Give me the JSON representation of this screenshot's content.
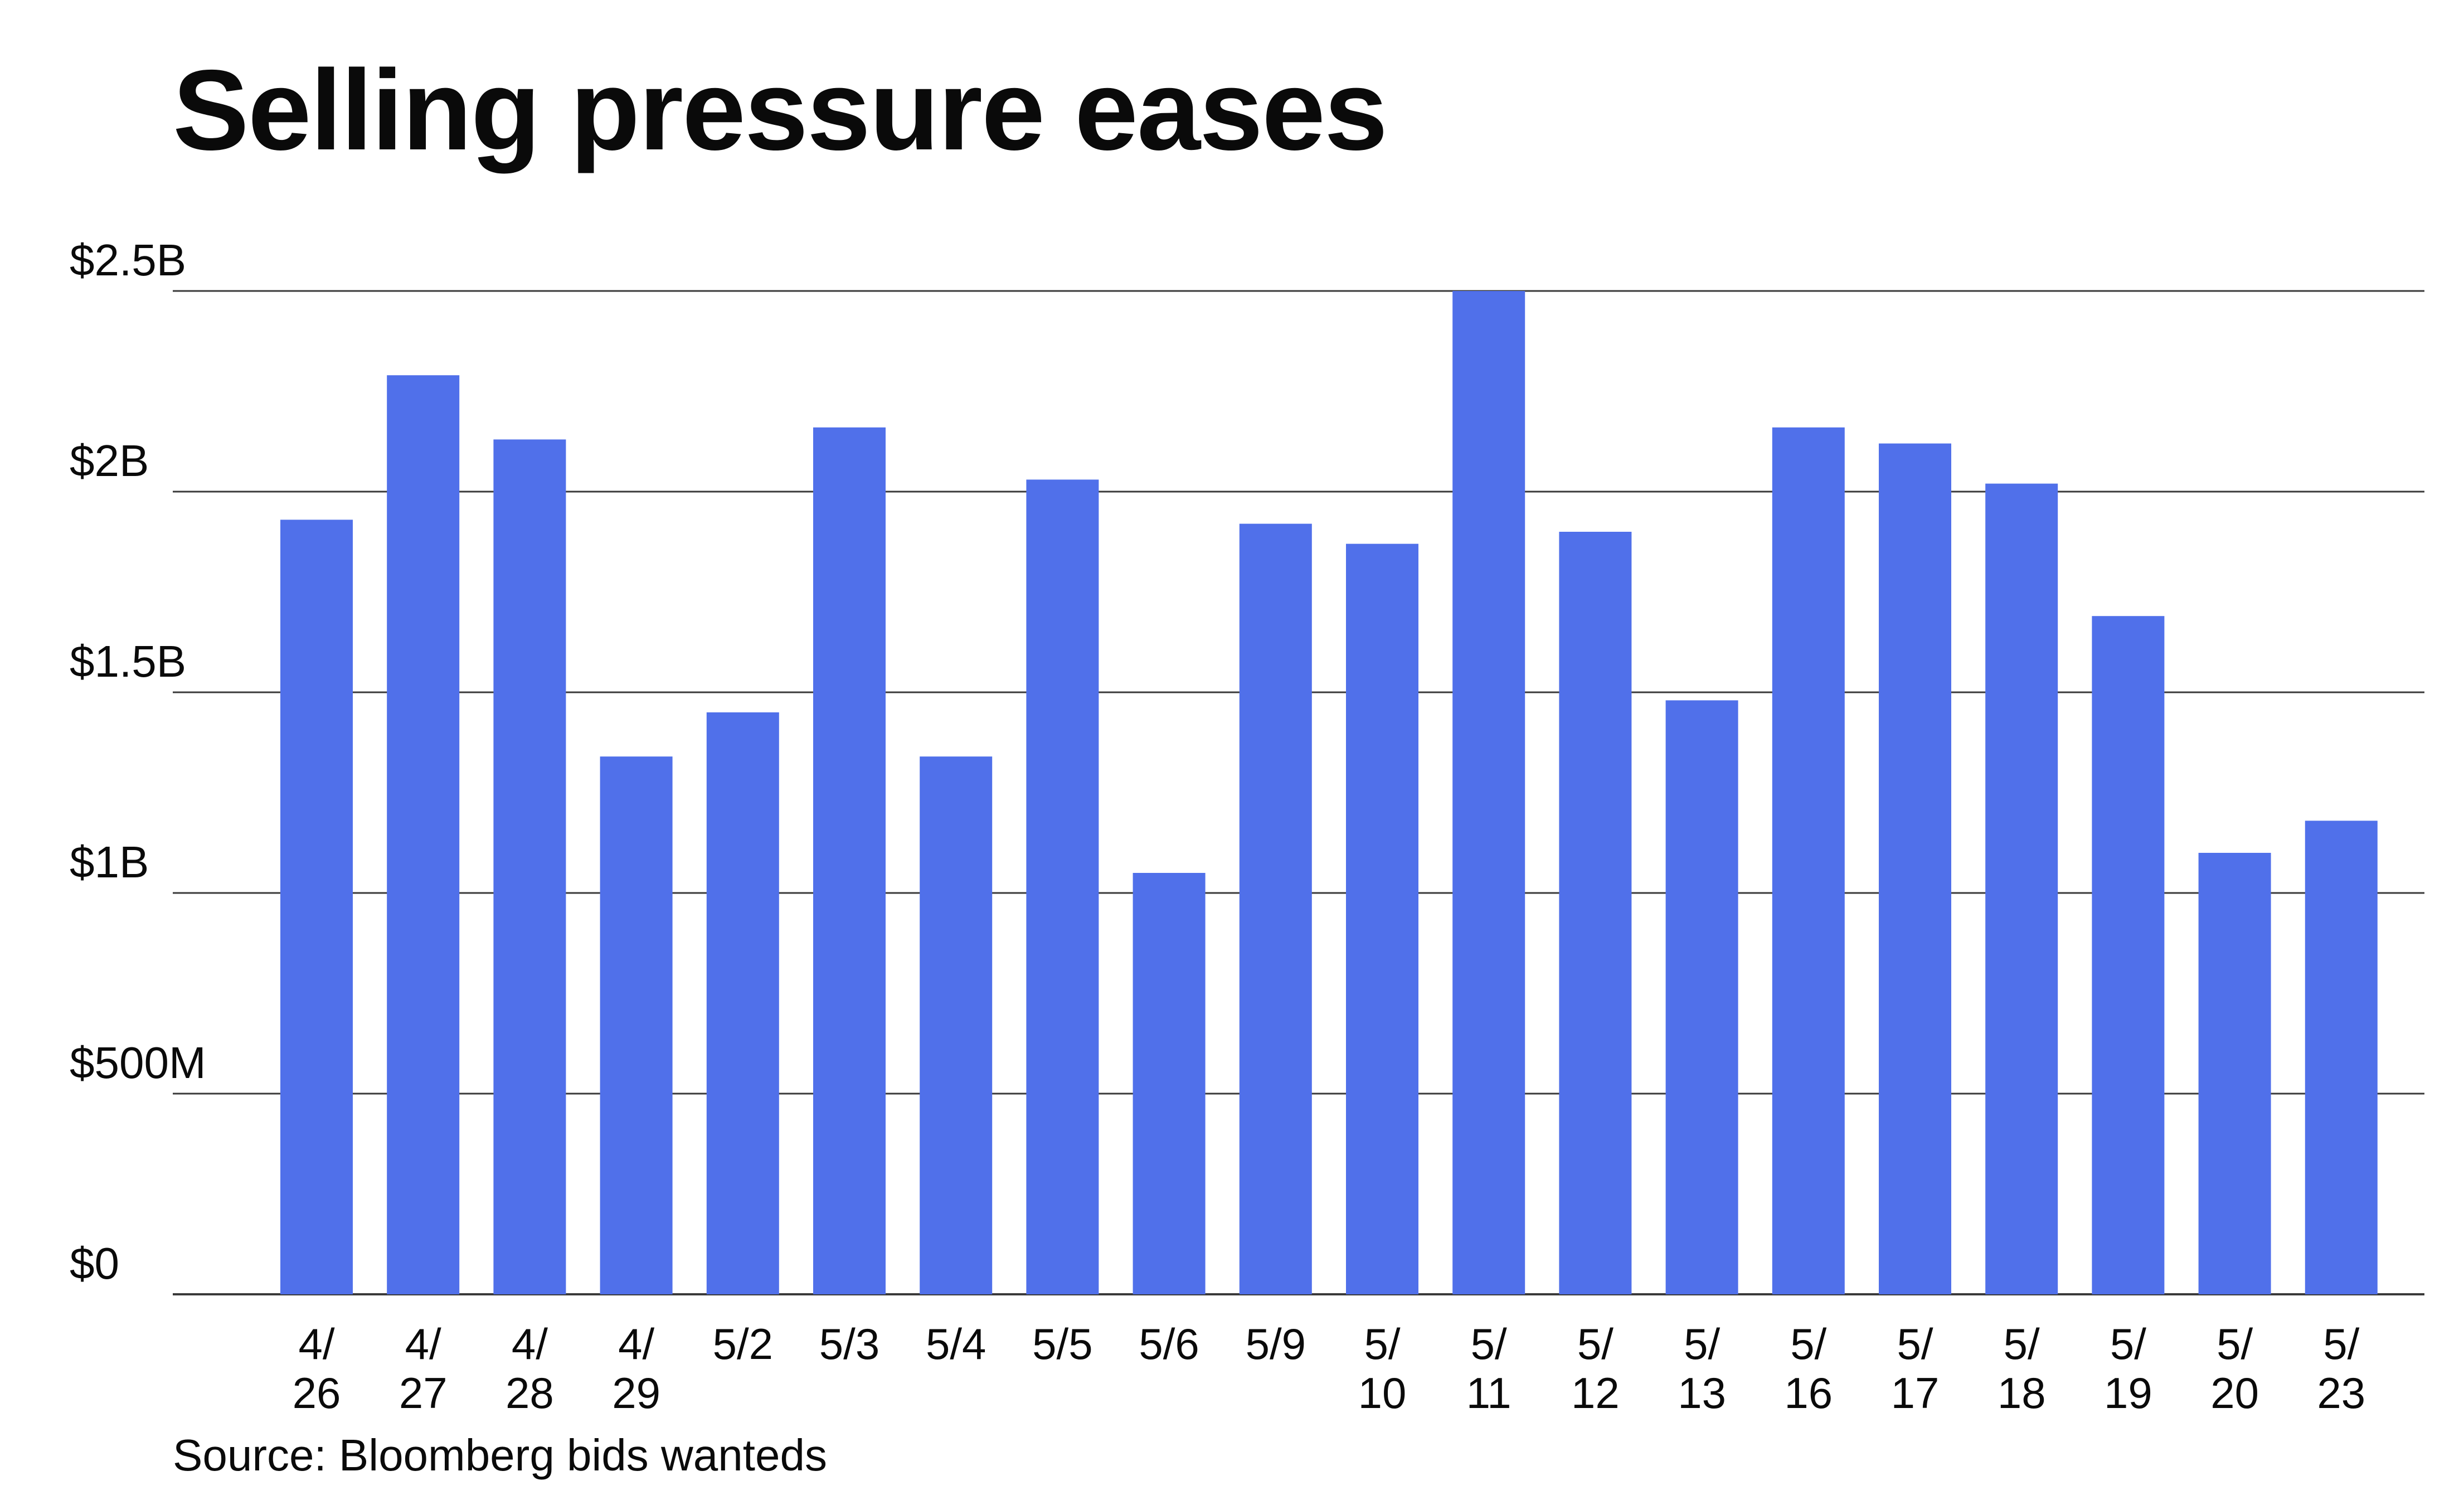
{
  "title": "Selling pressure eases",
  "source": "Source: Bloomberg bids wanteds",
  "colors": {
    "bar": "#5070EA",
    "grid": "#3a3a3a",
    "text": "#0a0a0a"
  },
  "chart_data": {
    "type": "bar",
    "title": "Selling pressure eases",
    "xlabel": "",
    "ylabel": "",
    "ylim": [
      0,
      2500000000
    ],
    "grid": true,
    "legend": "none",
    "yticks": [
      {
        "value": 0,
        "label": "$0"
      },
      {
        "value": 500000000,
        "label": "$500M"
      },
      {
        "value": 1000000000,
        "label": "$1B"
      },
      {
        "value": 1500000000,
        "label": "$1.5B"
      },
      {
        "value": 2000000000,
        "label": "$2B"
      },
      {
        "value": 2500000000,
        "label": "$2.5B"
      }
    ],
    "categories": [
      [
        "4/",
        "26"
      ],
      [
        "4/",
        "27"
      ],
      [
        "4/",
        "28"
      ],
      [
        "4/",
        "29"
      ],
      [
        "5/2"
      ],
      [
        "5/3"
      ],
      [
        "5/4"
      ],
      [
        "5/5"
      ],
      [
        "5/6"
      ],
      [
        "5/9"
      ],
      [
        "5/",
        "10"
      ],
      [
        "5/",
        "11"
      ],
      [
        "5/",
        "12"
      ],
      [
        "5/",
        "13"
      ],
      [
        "5/",
        "16"
      ],
      [
        "5/",
        "17"
      ],
      [
        "5/",
        "18"
      ],
      [
        "5/",
        "19"
      ],
      [
        "5/",
        "20"
      ],
      [
        "5/",
        "23"
      ]
    ],
    "values": [
      1930000000,
      2290000000,
      2130000000,
      1340000000,
      1450000000,
      2160000000,
      1340000000,
      2030000000,
      1050000000,
      1920000000,
      1870000000,
      2500000000,
      1900000000,
      1480000000,
      2160000000,
      2120000000,
      2020000000,
      1690000000,
      1100000000,
      1180000000
    ]
  }
}
